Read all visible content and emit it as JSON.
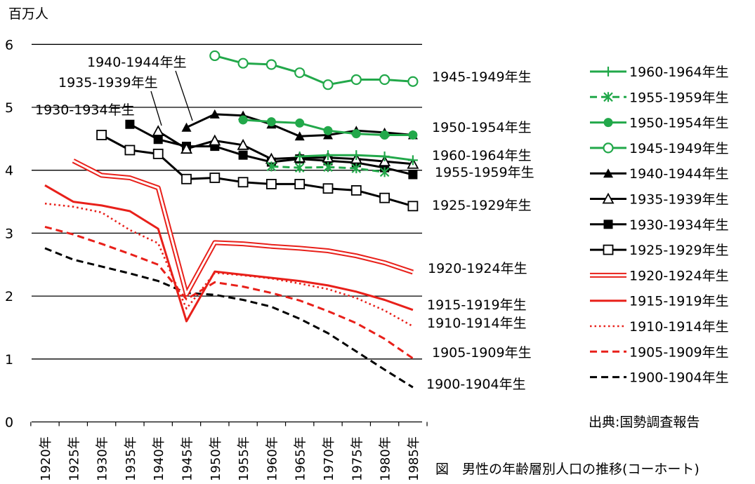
{
  "chart_data": {
    "type": "line",
    "title": "",
    "caption": "図　男性の年齢層別人口の推移(コーホート)",
    "source": "出典:国勢調査報告",
    "ylabel": "百万人",
    "xlabel": "",
    "ylim": [
      0,
      6
    ],
    "yticks": [
      "0",
      "1",
      "2",
      "3",
      "4",
      "5",
      "6"
    ],
    "grid": "horizontal",
    "legend_position": "right",
    "categories": [
      "1920年",
      "1925年",
      "1930年",
      "1935年",
      "1940年",
      "1945年",
      "1950年",
      "1955年",
      "1960年",
      "1965年",
      "1970年",
      "1975年",
      "1980年",
      "1985年"
    ],
    "series": [
      {
        "name": "1960-1964年生",
        "color": "#22a84a",
        "style": "solid",
        "marker": "plus",
        "values": [
          null,
          null,
          null,
          null,
          null,
          null,
          null,
          null,
          null,
          4.22,
          4.24,
          4.24,
          4.22,
          4.16
        ]
      },
      {
        "name": "1955-1959年生",
        "color": "#22a84a",
        "style": "dashed",
        "marker": "star",
        "values": [
          null,
          null,
          null,
          null,
          null,
          null,
          null,
          null,
          4.06,
          4.04,
          4.05,
          4.03,
          3.97,
          null
        ]
      },
      {
        "name": "1950-1954年生",
        "color": "#22a84a",
        "style": "solid",
        "marker": "filled-circle",
        "values": [
          null,
          null,
          null,
          null,
          null,
          null,
          null,
          4.8,
          4.77,
          4.75,
          4.63,
          4.58,
          4.56,
          4.56
        ]
      },
      {
        "name": "1945-1949年生",
        "color": "#22a84a",
        "style": "solid",
        "marker": "open-circle",
        "values": [
          null,
          null,
          null,
          null,
          null,
          null,
          5.82,
          5.7,
          5.68,
          5.55,
          5.36,
          5.44,
          5.44,
          5.41
        ]
      },
      {
        "name": "1940-1944年生",
        "color": "#000000",
        "style": "solid",
        "marker": "filled-triangle",
        "values": [
          null,
          null,
          null,
          null,
          null,
          4.68,
          4.89,
          4.87,
          4.73,
          4.54,
          4.56,
          4.63,
          4.6,
          4.56
        ]
      },
      {
        "name": "1935-1939年生",
        "color": "#000000",
        "style": "solid",
        "marker": "open-triangle",
        "values": [
          null,
          null,
          null,
          null,
          4.62,
          4.34,
          4.47,
          4.4,
          4.18,
          4.2,
          4.2,
          4.18,
          4.14,
          4.1
        ]
      },
      {
        "name": "1930-1934年生",
        "color": "#000000",
        "style": "solid",
        "marker": "filled-square",
        "values": [
          null,
          null,
          null,
          4.73,
          4.49,
          4.38,
          4.38,
          4.24,
          4.13,
          4.18,
          4.15,
          4.12,
          4.04,
          3.93
        ]
      },
      {
        "name": "1925-1929年生",
        "color": "#000000",
        "style": "solid",
        "marker": "open-square",
        "values": [
          null,
          null,
          4.56,
          4.32,
          4.26,
          3.86,
          3.88,
          3.81,
          3.78,
          3.78,
          3.71,
          3.68,
          3.56,
          3.43
        ]
      },
      {
        "name": "1920-1924年生",
        "color": "#e8201a",
        "style": "double",
        "marker": "none",
        "values": [
          null,
          4.15,
          3.92,
          3.88,
          3.72,
          2.03,
          2.85,
          2.83,
          2.79,
          2.76,
          2.72,
          2.64,
          2.53,
          2.38
        ]
      },
      {
        "name": "1915-1919年生",
        "color": "#e8201a",
        "style": "solid",
        "marker": "none",
        "values": [
          3.76,
          3.5,
          3.44,
          3.35,
          3.07,
          1.6,
          2.39,
          2.34,
          2.29,
          2.24,
          2.17,
          2.07,
          1.94,
          1.78
        ]
      },
      {
        "name": "1910-1914年生",
        "color": "#e8201a",
        "style": "dotted",
        "marker": "none",
        "values": [
          3.47,
          3.42,
          3.33,
          3.05,
          2.84,
          1.8,
          2.37,
          2.33,
          2.28,
          2.2,
          2.11,
          1.97,
          1.77,
          1.52
        ]
      },
      {
        "name": "1905-1909年生",
        "color": "#e8201a",
        "style": "dashed",
        "marker": "none",
        "values": [
          3.1,
          2.98,
          2.83,
          2.67,
          2.5,
          1.95,
          2.22,
          2.15,
          2.05,
          1.93,
          1.76,
          1.57,
          1.32,
          1.01
        ]
      },
      {
        "name": "1900-1904年生",
        "color": "#000000",
        "style": "dashed",
        "marker": "none",
        "values": [
          2.76,
          2.58,
          2.47,
          2.36,
          2.24,
          2.05,
          2.02,
          1.94,
          1.83,
          1.64,
          1.41,
          1.12,
          0.83,
          0.55
        ]
      }
    ],
    "line_labels": [
      {
        "text": "1945-1949年生",
        "series": "1945-1949年生"
      },
      {
        "text": "1950-1954年生",
        "series": "1950-1954年生"
      },
      {
        "text": "1960-1964年生",
        "series": "1960-1964年生"
      },
      {
        "text": "1955-1959年生",
        "series": "1955-1959年生"
      },
      {
        "text": "1925-1929年生",
        "series": "1925-1929年生"
      },
      {
        "text": "1920-1924年生",
        "series": "1920-1924年生"
      },
      {
        "text": "1915-1919年生",
        "series": "1915-1919年生"
      },
      {
        "text": "1910-1914年生",
        "series": "1910-1914年生"
      },
      {
        "text": "1905-1909年生",
        "series": "1905-1909年生"
      },
      {
        "text": "1900-1904年生",
        "series": "1900-1904年生"
      },
      {
        "text": "1940-1944年生",
        "series": "1940-1944年生"
      },
      {
        "text": "1935-1939年生",
        "series": "1935-1939年生"
      },
      {
        "text": "1930-1934年生",
        "series": "1930-1934年生"
      }
    ]
  }
}
